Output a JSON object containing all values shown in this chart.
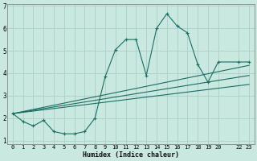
{
  "xlabel": "Humidex (Indice chaleur)",
  "bg_color": "#c8e8e0",
  "grid_color": "#a8d0c8",
  "line_color": "#1a6e62",
  "xlim": [
    -0.5,
    23.5
  ],
  "ylim": [
    0.85,
    7.1
  ],
  "xtick_vals": [
    0,
    1,
    2,
    3,
    4,
    5,
    6,
    7,
    8,
    9,
    10,
    11,
    12,
    13,
    14,
    15,
    16,
    17,
    18,
    19,
    20,
    22,
    23
  ],
  "xtick_labels": [
    "0",
    "1",
    "2",
    "3",
    "4",
    "5",
    "6",
    "7",
    "8",
    "9",
    "10",
    "11",
    "12",
    "13",
    "14",
    "15",
    "16",
    "17",
    "18",
    "19",
    "20",
    "22",
    "23"
  ],
  "ytick_vals": [
    1,
    2,
    3,
    4,
    5,
    6,
    7
  ],
  "main_x": [
    0,
    1,
    2,
    3,
    4,
    5,
    6,
    7,
    8,
    9,
    10,
    11,
    12,
    13,
    14,
    15,
    16,
    17,
    18,
    19,
    20,
    22,
    23
  ],
  "main_y": [
    2.2,
    1.85,
    1.65,
    1.9,
    1.4,
    1.3,
    1.3,
    1.4,
    2.0,
    3.85,
    5.05,
    5.5,
    5.5,
    3.9,
    6.0,
    6.65,
    6.1,
    5.8,
    4.4,
    3.6,
    4.5,
    4.5,
    4.5
  ],
  "trend_lines": [
    {
      "x0": 0,
      "y0": 2.2,
      "x1": 23,
      "y1": 3.5
    },
    {
      "x0": 0,
      "y0": 2.2,
      "x1": 23,
      "y1": 3.9
    },
    {
      "x0": 0,
      "y0": 2.2,
      "x1": 23,
      "y1": 4.35
    }
  ]
}
